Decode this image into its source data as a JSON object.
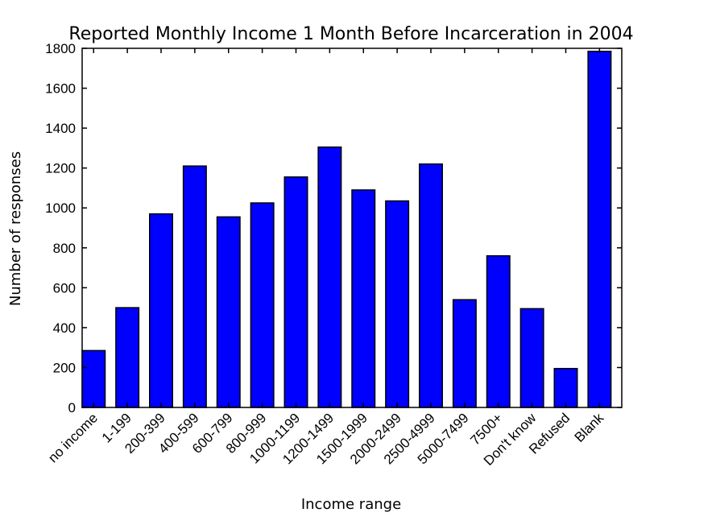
{
  "chart_data": {
    "type": "bar",
    "title": "Reported Monthly Income 1 Month Before Incarceration in 2004",
    "xlabel": "Income range",
    "ylabel": "Number of responses",
    "ylim": [
      0,
      1800
    ],
    "yticks": [
      0,
      200,
      400,
      600,
      800,
      1000,
      1200,
      1400,
      1600,
      1800
    ],
    "categories": [
      "no income",
      "1-199",
      "200-399",
      "400-599",
      "600-799",
      "800-999",
      "1000-1199",
      "1200-1499",
      "1500-1999",
      "2000-2499",
      "2500-4999",
      "5000-7499",
      "7500+",
      "Don't know",
      "Refused",
      "Blank"
    ],
    "values": [
      285,
      500,
      970,
      1210,
      955,
      1025,
      1155,
      1305,
      1090,
      1035,
      1220,
      540,
      760,
      495,
      195,
      1785
    ],
    "bar_color": "#0000ff",
    "grid": false,
    "legend": "none"
  }
}
